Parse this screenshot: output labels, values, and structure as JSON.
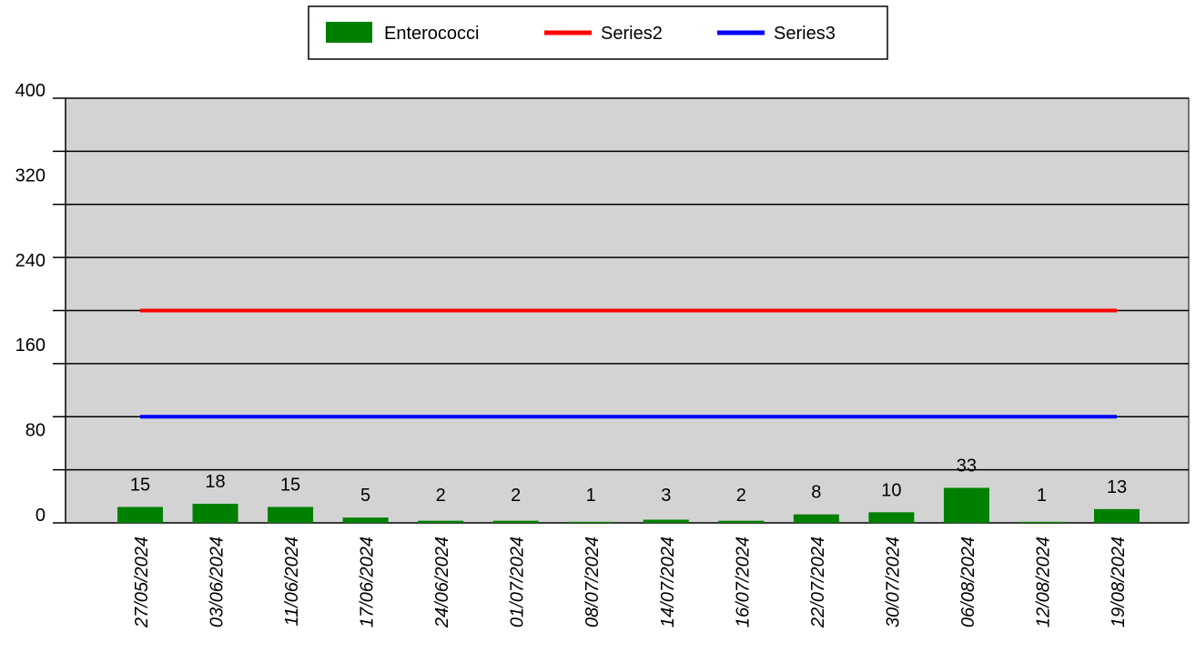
{
  "chart_data": {
    "type": "bar",
    "categories": [
      "27/05/2024",
      "03/06/2024",
      "11/06/2024",
      "17/06/2024",
      "24/06/2024",
      "01/07/2024",
      "08/07/2024",
      "14/07/2024",
      "16/07/2024",
      "22/07/2024",
      "30/07/2024",
      "06/08/2024",
      "12/08/2024",
      "19/08/2024"
    ],
    "series": [
      {
        "name": "Enterococci",
        "type": "bar",
        "color": "#008000",
        "values": [
          15,
          18,
          15,
          5,
          2,
          2,
          1,
          3,
          2,
          8,
          10,
          33,
          1,
          13
        ]
      },
      {
        "name": "Series2",
        "type": "line",
        "color": "#ff0000",
        "values": [
          200,
          200,
          200,
          200,
          200,
          200,
          200,
          200,
          200,
          200,
          200,
          200,
          200,
          200
        ]
      },
      {
        "name": "Series3",
        "type": "line",
        "color": "#0000ff",
        "values": [
          100,
          100,
          100,
          100,
          100,
          100,
          100,
          100,
          100,
          100,
          100,
          100,
          100,
          100
        ]
      }
    ],
    "ylim": [
      0,
      400
    ],
    "yticks": [
      0,
      80,
      160,
      240,
      320,
      400
    ],
    "grid_step": 50,
    "grid": true,
    "legend_position": "top-center",
    "plot_background": "#d3d3d3",
    "title": "",
    "xlabel": "",
    "ylabel": ""
  }
}
